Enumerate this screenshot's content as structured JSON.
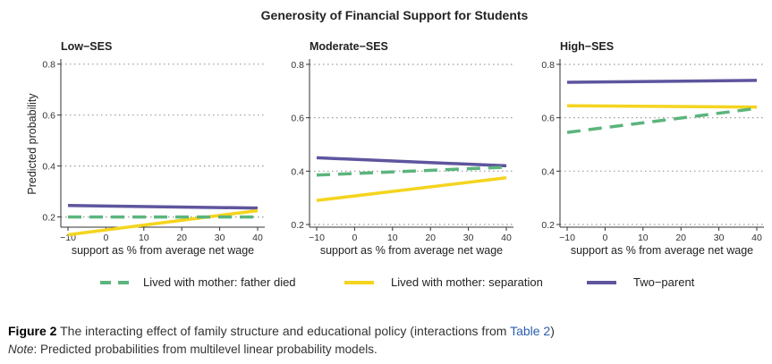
{
  "chart_data": {
    "type": "line",
    "title": "Generosity of Financial Support for Students",
    "xlabel": "support as % from average net wage",
    "ylabel": "Predicted probability",
    "x_ticks": [
      -10,
      0,
      10,
      20,
      30,
      40
    ],
    "x_tick_labels": [
      "−10",
      "0",
      "10",
      "20",
      "30",
      "40"
    ],
    "xlim": [
      -10,
      40
    ],
    "grid": "horizontal dotted",
    "legend_position": "bottom",
    "colors": {
      "Lived with mother: father died": "#5bb57d",
      "Lived with mother: separation": "#f5d41e",
      "Two−parent": "#5e559e"
    },
    "panels": [
      {
        "title": "Low−SES",
        "ylim": [
          0.16,
          0.82
        ],
        "y_ticks": [
          0.2,
          0.4,
          0.6,
          0.8
        ],
        "y_tick_labels": [
          "0.2",
          "0.4",
          "0.6",
          "0.8"
        ],
        "series": [
          {
            "name": "Lived with mother: father died",
            "x": [
              -10,
              40
            ],
            "values": [
              0.2,
              0.2
            ]
          },
          {
            "name": "Lived with mother: separation",
            "x": [
              -10,
              40
            ],
            "values": [
              0.13,
              0.225
            ]
          },
          {
            "name": "Two−parent",
            "x": [
              -10,
              40
            ],
            "values": [
              0.245,
              0.235
            ]
          }
        ]
      },
      {
        "title": "Moderate−SES",
        "ylim": [
          0.19,
          0.82
        ],
        "y_ticks": [
          0.2,
          0.4,
          0.6,
          0.8
        ],
        "y_tick_labels": [
          "0.2",
          "0.4",
          "0.6",
          "0.8"
        ],
        "series": [
          {
            "name": "Lived with mother: father died",
            "x": [
              -10,
              40
            ],
            "values": [
              0.385,
              0.415
            ]
          },
          {
            "name": "Lived with mother: separation",
            "x": [
              -10,
              40
            ],
            "values": [
              0.29,
              0.375
            ]
          },
          {
            "name": "Two−parent",
            "x": [
              -10,
              40
            ],
            "values": [
              0.45,
              0.42
            ]
          }
        ]
      },
      {
        "title": "High−SES",
        "ylim": [
          0.19,
          0.82
        ],
        "y_ticks": [
          0.2,
          0.4,
          0.6,
          0.8
        ],
        "y_tick_labels": [
          "0.2",
          "0.4",
          "0.6",
          "0.8"
        ],
        "series": [
          {
            "name": "Lived with mother: father died",
            "x": [
              -10,
              40
            ],
            "values": [
              0.545,
              0.635
            ]
          },
          {
            "name": "Lived with mother: separation",
            "x": [
              -10,
              40
            ],
            "values": [
              0.645,
              0.64
            ]
          },
          {
            "name": "Two−parent",
            "x": [
              -10,
              40
            ],
            "values": [
              0.733,
              0.74
            ]
          }
        ]
      }
    ]
  },
  "caption": {
    "figure_label": "Figure 2",
    "text": "The interacting effect of family structure and educational policy (interactions from",
    "table_ref": "Table 2",
    "close": ")"
  },
  "note": {
    "label": "Note",
    "text": ": Predicted probabilities from multilevel linear probability models."
  }
}
